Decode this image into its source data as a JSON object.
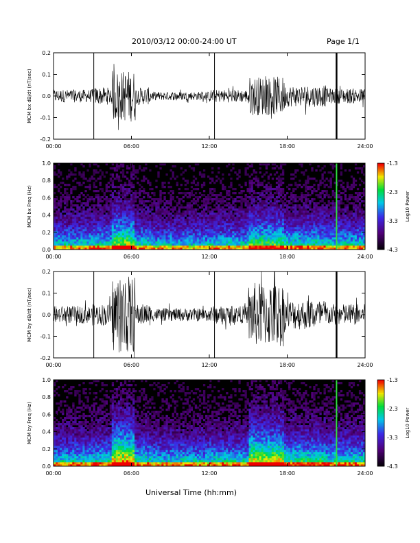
{
  "header": {
    "title": "2010/03/12  00:00-24:00 UT",
    "page": "Page 1/1"
  },
  "footer": {
    "xlabel": "Universal Time (hh:mm)"
  },
  "chart_data": [
    {
      "type": "line",
      "name": "bx-waveform",
      "ylabel": "MCM bx dB/dt (nT/sec)",
      "xlim": [
        0,
        24
      ],
      "ylim": [
        -0.2,
        0.2
      ],
      "x_ticks": [
        "00:00",
        "06:00",
        "12:00",
        "18:00",
        "24:00"
      ],
      "y_ticks": [
        "0.2",
        "0.1",
        "0.0",
        "-0.1",
        "-0.2"
      ],
      "spikes_hours": [
        3.1,
        12.4,
        21.8
      ],
      "activity": [
        {
          "from": 0.0,
          "to": 3.0,
          "amp": 0.03
        },
        {
          "from": 3.0,
          "to": 4.5,
          "amp": 0.04
        },
        {
          "from": 4.5,
          "to": 6.3,
          "amp": 0.12
        },
        {
          "from": 6.3,
          "to": 7.5,
          "amp": 0.04
        },
        {
          "from": 7.5,
          "to": 12.0,
          "amp": 0.02
        },
        {
          "from": 12.0,
          "to": 15.0,
          "amp": 0.03
        },
        {
          "from": 15.0,
          "to": 17.8,
          "amp": 0.09
        },
        {
          "from": 17.8,
          "to": 21.0,
          "amp": 0.05
        },
        {
          "from": 21.0,
          "to": 24.0,
          "amp": 0.035
        }
      ]
    },
    {
      "type": "heatmap",
      "name": "bx-spectrogram",
      "ylabel": "MCM bx Freq (Hz)",
      "xlim": [
        0,
        24
      ],
      "ylim": [
        0.0,
        1.0
      ],
      "x_ticks": [
        "00:00",
        "06:00",
        "12:00",
        "18:00",
        "24:00"
      ],
      "y_ticks": [
        "1.0",
        "0.8",
        "0.6",
        "0.4",
        "0.2",
        "0.0"
      ],
      "colorbar": {
        "label": "Log10 Power",
        "ticks": [
          "-1.3",
          "-2.3",
          "-3.3",
          "-4.3"
        ],
        "min": -4.3,
        "max": -1.3
      },
      "bright_line_hours": 21.8
    },
    {
      "type": "line",
      "name": "by-waveform",
      "ylabel": "MCM by dB/dt (nT/sec)",
      "xlim": [
        0,
        24
      ],
      "ylim": [
        -0.2,
        0.2
      ],
      "x_ticks": [
        "00:00",
        "06:00",
        "12:00",
        "18:00",
        "24:00"
      ],
      "y_ticks": [
        "0.2",
        "0.1",
        "0.0",
        "-0.1",
        "-0.2"
      ],
      "spikes_hours": [
        3.1,
        12.4,
        21.8
      ],
      "activity": [
        {
          "from": 0.0,
          "to": 3.0,
          "amp": 0.04
        },
        {
          "from": 3.0,
          "to": 4.5,
          "amp": 0.05
        },
        {
          "from": 4.5,
          "to": 6.3,
          "amp": 0.18
        },
        {
          "from": 6.3,
          "to": 7.5,
          "amp": 0.05
        },
        {
          "from": 7.5,
          "to": 12.0,
          "amp": 0.03
        },
        {
          "from": 12.0,
          "to": 15.0,
          "amp": 0.04
        },
        {
          "from": 15.0,
          "to": 17.8,
          "amp": 0.15
        },
        {
          "from": 17.8,
          "to": 21.0,
          "amp": 0.07
        },
        {
          "from": 21.0,
          "to": 24.0,
          "amp": 0.05
        }
      ]
    },
    {
      "type": "heatmap",
      "name": "by-spectrogram",
      "ylabel": "MCM by Freq (Hz)",
      "xlim": [
        0,
        24
      ],
      "ylim": [
        0.0,
        1.0
      ],
      "x_ticks": [
        "00:00",
        "06:00",
        "12:00",
        "18:00",
        "24:00"
      ],
      "y_ticks": [
        "1.0",
        "0.8",
        "0.6",
        "0.4",
        "0.2",
        "0.0"
      ],
      "colorbar": {
        "label": "Log10 Power",
        "ticks": [
          "-1.3",
          "-2.3",
          "-3.3",
          "-4.3"
        ],
        "min": -4.3,
        "max": -1.3
      },
      "bright_line_hours": 21.8
    }
  ]
}
